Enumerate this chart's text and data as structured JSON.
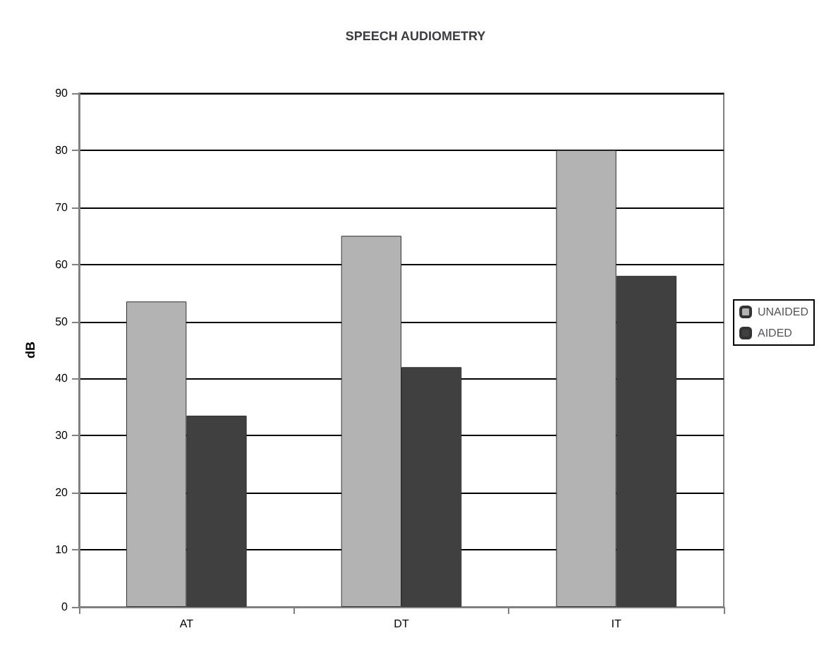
{
  "chart_data": {
    "type": "bar",
    "title": "SPEECH AUDIOMETRY",
    "ylabel": "dB",
    "categories": [
      "AT",
      "DT",
      "IT"
    ],
    "series": [
      {
        "name": "UNAIDED",
        "color": "#b3b3b3",
        "values": [
          53.5,
          65,
          80
        ]
      },
      {
        "name": "AIDED",
        "color": "#404040",
        "values": [
          33.5,
          42,
          58
        ]
      }
    ],
    "ylim": [
      0,
      90
    ],
    "yticks": [
      0,
      10,
      20,
      30,
      40,
      50,
      60,
      70,
      80,
      90
    ],
    "grid": "y",
    "legend": "right"
  }
}
